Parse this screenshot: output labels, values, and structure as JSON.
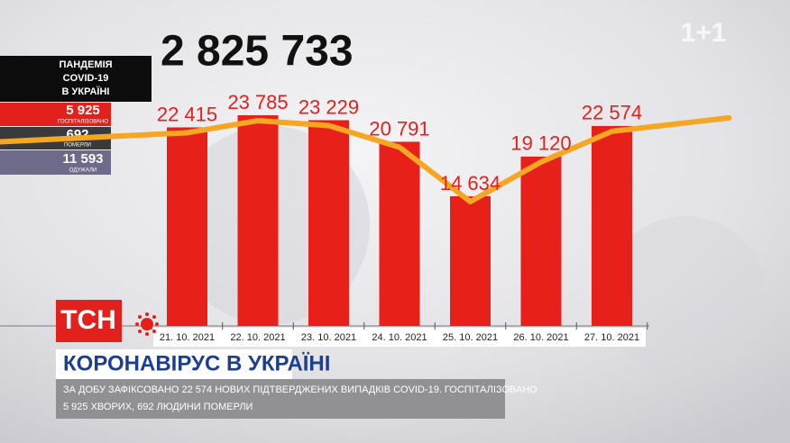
{
  "chart_data": {
    "type": "bar",
    "title": "2 825 733",
    "categories": [
      "21. 10. 2021",
      "22. 10. 2021",
      "23. 10. 2021",
      "24. 10. 2021",
      "25. 10. 2021",
      "26. 10. 2021",
      "27. 10. 2021"
    ],
    "values": [
      22415,
      23785,
      23229,
      20791,
      14634,
      19120,
      22574
    ],
    "value_labels": [
      "22 415",
      "23 785",
      "23 229",
      "20 791",
      "14 634",
      "19 120",
      "22 574"
    ],
    "color": "#e8201a",
    "line_color": "#f5a623"
  },
  "panel": {
    "title_lines": [
      "ПАНДЕМІЯ",
      "COVID-19",
      "В УКРАЇНІ"
    ],
    "hospitalized": "5 925",
    "hospitalized_label": "ГОСПІТАЛІЗОВАНО",
    "died": "692",
    "died_label": "ПОМЕРЛИ",
    "recovered": "11 593",
    "recovered_label": "ОДУЖАЛИ"
  },
  "logo": "1+1",
  "lower_third": {
    "badge": "ТСН",
    "headline": "КОРОНАВІРУС В УКРАЇНІ",
    "caption_lines": [
      "ЗА ДОБУ ЗАФІКСОВАНО 22 574 НОВИХ ПІДТВЕРДЖЕНИХ ВИПАДКІВ COVID-19. ГОСПІТАЛІЗОВАНО",
      "5 925 ХВОРИХ, 692 ЛЮДИНИ ПОМЕРЛИ"
    ]
  }
}
